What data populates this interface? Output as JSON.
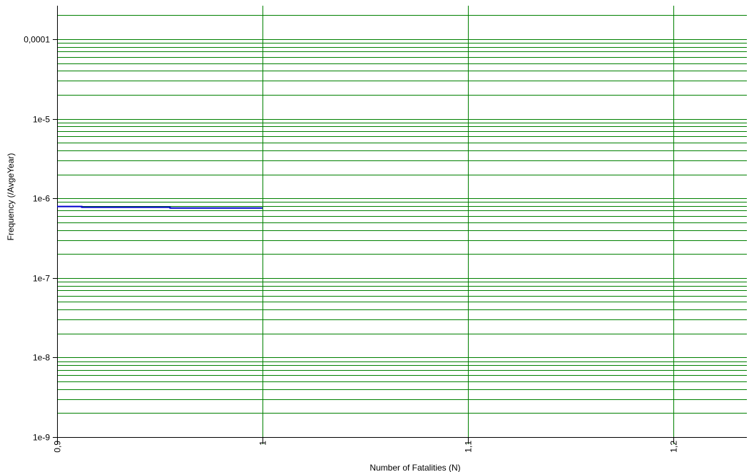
{
  "chart_data": {
    "type": "line",
    "title": "",
    "xlabel": "Number of Fatalities (N)",
    "ylabel": "Frequency (/AvgeYear)",
    "x_scale": "linear",
    "y_scale": "log",
    "xlim": [
      0.9,
      1.27
    ],
    "ylim": [
      1e-09,
      0.0002
    ],
    "x_ticks": [
      {
        "value": 0.9,
        "label": "0,9"
      },
      {
        "value": 1.0,
        "label": "1"
      },
      {
        "value": 1.1,
        "label": "1,1"
      },
      {
        "value": 1.2,
        "label": "1,2"
      }
    ],
    "y_ticks": [
      {
        "value": 1e-09,
        "label": "1e-9"
      },
      {
        "value": 1e-08,
        "label": "1e-8"
      },
      {
        "value": 1e-07,
        "label": "1e-7"
      },
      {
        "value": 1e-06,
        "label": "1e-6"
      },
      {
        "value": 1e-05,
        "label": "1e-5"
      },
      {
        "value": 0.0001,
        "label": "0,0001"
      }
    ],
    "grid": true,
    "legend": "none",
    "series": [
      {
        "color": "#0000cc",
        "step": true,
        "points": [
          {
            "x": 0.9,
            "y": 7.9e-07
          },
          {
            "x": 0.912,
            "y": 7.9e-07
          },
          {
            "x": 0.912,
            "y": 7.75e-07
          },
          {
            "x": 0.955,
            "y": 7.75e-07
          },
          {
            "x": 0.955,
            "y": 7.55e-07
          },
          {
            "x": 1.0,
            "y": 7.55e-07
          }
        ]
      }
    ],
    "colors": {
      "grid": "#008000",
      "axis": "#000000",
      "line": "#0000cc"
    }
  }
}
